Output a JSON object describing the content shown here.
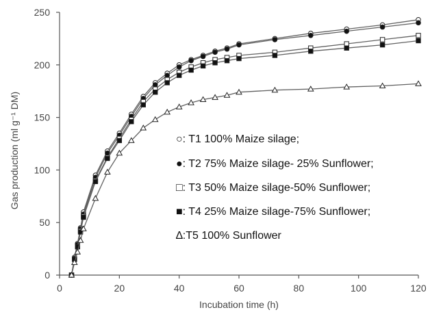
{
  "chart_data": {
    "type": "line",
    "xlabel": "Incubation time (h)",
    "ylabel": "Gas production (ml g⁻¹ DM)",
    "xlim": [
      0,
      120
    ],
    "ylim": [
      0,
      250
    ],
    "xticks": [
      0,
      20,
      40,
      60,
      80,
      100,
      120
    ],
    "yticks": [
      0,
      50,
      100,
      150,
      200,
      250
    ],
    "grid": false,
    "legend_placement": "center-right",
    "colors": {
      "axis": "#555555",
      "line": "#606060",
      "text": "#111111"
    },
    "x": [
      4,
      5,
      6,
      7,
      8,
      12,
      16,
      20,
      24,
      28,
      32,
      36,
      40,
      44,
      48,
      52,
      56,
      60,
      72,
      84,
      96,
      108,
      120
    ],
    "series": [
      {
        "name": "○: T1 100% Maize silage;",
        "marker": "open-circle",
        "values": [
          0,
          17,
          30,
          45,
          60,
          95,
          118,
          135,
          153,
          170,
          183,
          192,
          200,
          205,
          209,
          213,
          216,
          220,
          225,
          230,
          234,
          238,
          243
        ]
      },
      {
        "name": "●: T2 75% Maize silage- 25% Sunflower;",
        "marker": "filled-circle",
        "values": [
          0,
          16,
          29,
          44,
          58,
          93,
          116,
          133,
          151,
          168,
          181,
          190,
          198,
          204,
          208,
          212,
          215,
          219,
          224,
          228,
          232,
          236,
          240
        ]
      },
      {
        "name": "□: T3 50% Maize silage-50% Sunflower;",
        "marker": "open-square",
        "values": [
          0,
          15,
          27,
          42,
          56,
          90,
          112,
          130,
          148,
          165,
          177,
          186,
          193,
          198,
          202,
          205,
          207,
          209,
          212,
          216,
          220,
          224,
          228
        ]
      },
      {
        "name": "■: T4 25% Maize silage-75% Sunflower;",
        "marker": "filled-square",
        "values": [
          0,
          15,
          27,
          41,
          55,
          89,
          111,
          128,
          146,
          162,
          174,
          183,
          190,
          195,
          199,
          202,
          204,
          206,
          209,
          213,
          216,
          219,
          223
        ]
      },
      {
        "name": "∆:T5 100% Sunflower",
        "marker": "open-triangle",
        "values": [
          0,
          12,
          22,
          33,
          44,
          73,
          98,
          116,
          128,
          140,
          148,
          155,
          160,
          164,
          167,
          169,
          171,
          174,
          176,
          177,
          179,
          180,
          182
        ]
      }
    ]
  }
}
